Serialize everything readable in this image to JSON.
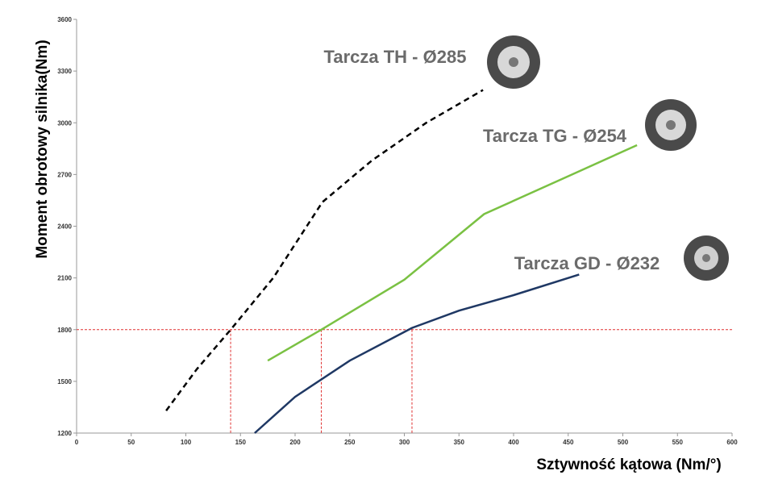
{
  "chart_data": {
    "type": "line",
    "x_label": "Sztywność kątowa (Nm/°)",
    "y_label": "Moment obrotowy silnika(Nm)",
    "xlim": [
      0,
      600
    ],
    "xticks": [
      0,
      50,
      100,
      150,
      200,
      250,
      300,
      350,
      400,
      450,
      500,
      550,
      600
    ],
    "ylim": [
      1200,
      3600
    ],
    "yticks": [
      1200,
      1500,
      1800,
      2100,
      2400,
      2700,
      3000,
      3300,
      3600
    ],
    "grid": false,
    "series": [
      {
        "name": "Tarcza TH - Ø285",
        "color": "#000000",
        "dashed": true,
        "x": [
          82,
          110,
          141,
          180,
          225,
          270,
          320,
          372
        ],
        "values": [
          1330,
          1570,
          1800,
          2100,
          2540,
          2780,
          3000,
          3190
        ]
      },
      {
        "name": "Tarcza TG - Ø254",
        "color": "#7ac143",
        "dashed": false,
        "x": [
          175,
          224,
          300,
          373,
          450,
          513
        ],
        "values": [
          1620,
          1800,
          2090,
          2470,
          2690,
          2870
        ]
      },
      {
        "name": "Tarcza GD - Ø232",
        "color": "#1f3864",
        "dashed": false,
        "x": [
          163,
          200,
          250,
          307,
          350,
          400,
          460
        ],
        "values": [
          1200,
          1410,
          1620,
          1810,
          1910,
          2000,
          2120
        ]
      }
    ],
    "reference_lines": {
      "color": "#e03030",
      "y": 1800,
      "x": [
        141,
        224,
        307
      ]
    }
  }
}
